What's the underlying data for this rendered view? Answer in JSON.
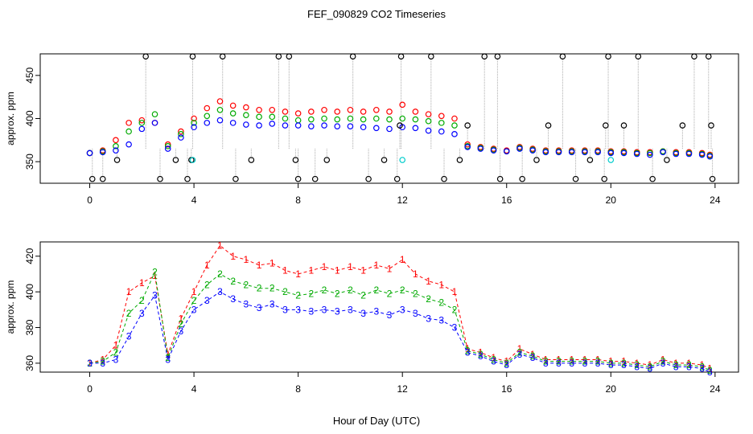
{
  "chart_data": {
    "title": "FEF_090829  CO2 Timeseries",
    "xlabel": "Hour of Day (UTC)",
    "xlim": [
      -1.9,
      24.9
    ],
    "xticks": [
      0,
      4,
      8,
      12,
      16,
      20,
      24
    ],
    "panels": [
      {
        "type": "scatter",
        "ylabel": "approx. ppm",
        "ylim": [
          325,
          475
        ],
        "yticks": [
          350,
          400,
          450
        ],
        "series": [
          {
            "name": "1",
            "color": "#ff0000",
            "x": [
              0,
              0.5,
              1,
              1.5,
              2,
              2.5,
              3,
              3.5,
              4,
              4.5,
              5,
              5.5,
              6,
              6.5,
              7,
              7.5,
              8,
              8.5,
              9,
              9.5,
              10,
              10.5,
              11,
              11.5,
              12,
              12.5,
              13,
              13.5,
              14,
              14.5,
              15,
              15.5,
              16,
              16.5,
              17,
              17.5,
              18,
              18.5,
              19,
              19.5,
              20,
              20.5,
              21,
              21.5,
              22,
              22.5,
              23,
              23.5,
              23.8
            ],
            "y": [
              360,
              363,
              375,
              395,
              398,
              395,
              370,
              385,
              400,
              412,
              420,
              415,
              413,
              410,
              410,
              408,
              406,
              408,
              410,
              408,
              410,
              408,
              410,
              408,
              416,
              408,
              405,
              403,
              400,
              370,
              367,
              365,
              363,
              367,
              365,
              363,
              363,
              363,
              363,
              363,
              362,
              362,
              361,
              361,
              362,
              361,
              361,
              360,
              358
            ]
          },
          {
            "name": "2",
            "color": "#00aa00",
            "x": [
              0,
              0.5,
              1,
              1.5,
              2,
              2.5,
              3,
              3.5,
              4,
              4.5,
              5,
              5.5,
              6,
              6.5,
              7,
              7.5,
              8,
              8.5,
              9,
              9.5,
              10,
              10.5,
              11,
              11.5,
              12,
              12.5,
              13,
              13.5,
              14,
              14.5,
              15,
              15.5,
              16,
              16.5,
              17,
              17.5,
              18,
              18.5,
              19,
              19.5,
              20,
              20.5,
              21,
              21.5,
              22,
              22.5,
              23,
              23.5,
              23.8
            ],
            "y": [
              360,
              362,
              368,
              385,
              395,
              405,
              368,
              382,
              395,
              403,
              410,
              406,
              404,
              402,
              402,
              400,
              398,
              399,
              400,
              399,
              400,
              399,
              400,
              399,
              400,
              399,
              397,
              395,
              392,
              368,
              366,
              364,
              362,
              366,
              364,
              362,
              362,
              362,
              362,
              362,
              361,
              361,
              360,
              360,
              362,
              360,
              360,
              359,
              357
            ]
          },
          {
            "name": "3",
            "color": "#0000ff",
            "x": [
              0,
              0.5,
              1,
              1.5,
              2,
              2.5,
              3,
              3.5,
              4,
              4.5,
              5,
              5.5,
              6,
              6.5,
              7,
              7.5,
              8,
              8.5,
              9,
              9.5,
              10,
              10.5,
              11,
              11.5,
              12,
              12.5,
              13,
              13.5,
              14,
              14.5,
              15,
              15.5,
              16,
              16.5,
              17,
              17.5,
              18,
              18.5,
              19,
              19.5,
              20,
              20.5,
              21,
              21.5,
              22,
              22.5,
              23,
              23.5,
              23.8
            ],
            "y": [
              360,
              361,
              363,
              370,
              388,
              395,
              365,
              378,
              390,
              395,
              398,
              395,
              393,
              392,
              394,
              392,
              392,
              391,
              392,
              391,
              391,
              390,
              389,
              388,
              390,
              389,
              386,
              385,
              382,
              367,
              365,
              363,
              362,
              365,
              363,
              361,
              361,
              361,
              361,
              361,
              360,
              360,
              359,
              358,
              361,
              359,
              359,
              358,
              356
            ]
          }
        ],
        "excursions_black": {
          "x": [
            0.1,
            0.5,
            1.05,
            2.15,
            2.7,
            3.3,
            3.75,
            3.9,
            3.95,
            5.1,
            5.6,
            6.2,
            7.25,
            7.65,
            7.9,
            8.0,
            8.65,
            9.1,
            10.1,
            10.7,
            11.3,
            11.8,
            11.9,
            11.95,
            13.1,
            13.6,
            14.2,
            14.5,
            15.15,
            15.65,
            15.75,
            16.6,
            17.15,
            17.6,
            18.15,
            18.65,
            19.2,
            19.75,
            19.8,
            19.9,
            20.5,
            21.05,
            21.6,
            22.15,
            22.75,
            23.2,
            23.75,
            23.85,
            23.9
          ],
          "y": [
            330,
            330,
            352,
            472,
            330,
            352,
            330,
            352,
            472,
            472,
            330,
            352,
            472,
            472,
            352,
            330,
            330,
            352,
            472,
            330,
            352,
            330,
            392,
            472,
            472,
            330,
            352,
            392,
            472,
            472,
            330,
            330,
            352,
            392,
            472,
            330,
            352,
            330,
            392,
            472,
            392,
            472,
            330,
            352,
            392,
            472,
            472,
            392,
            330
          ]
        },
        "excursions_cyan": {
          "x": [
            3.95,
            12.0,
            20.0
          ],
          "y": [
            352,
            352,
            352
          ]
        }
      },
      {
        "type": "line",
        "ylabel": "approx. ppm",
        "ylim": [
          355,
          428
        ],
        "yticks": [
          360,
          380,
          400,
          420
        ],
        "series": [
          {
            "name": "1",
            "color": "#ff0000",
            "x": [
              0,
              0.5,
              1,
              1.5,
              2,
              2.5,
              3,
              3.5,
              4,
              4.5,
              5,
              5.5,
              6,
              6.5,
              7,
              7.5,
              8,
              8.5,
              9,
              9.5,
              10,
              10.5,
              11,
              11.5,
              12,
              12.5,
              13,
              13.5,
              14,
              14.5,
              15,
              15.5,
              16,
              16.5,
              17,
              17.5,
              18,
              18.5,
              19,
              19.5,
              20,
              20.5,
              21,
              21.5,
              22,
              22.5,
              23,
              23.5,
              23.8
            ],
            "y": [
              360,
              362,
              370,
              400,
              405,
              409,
              365,
              385,
              400,
              415,
              426,
              420,
              418,
              415,
              416,
              412,
              410,
              412,
              414,
              412,
              414,
              412,
              415,
              413,
              418,
              410,
              406,
              404,
              400,
              368,
              366,
              363,
              361,
              368,
              365,
              362,
              362,
              362,
              362,
              362,
              361,
              361,
              360,
              359,
              362,
              360,
              360,
              359,
              357
            ]
          },
          {
            "name": "2",
            "color": "#00aa00",
            "x": [
              0,
              0.5,
              1,
              1.5,
              2,
              2.5,
              3,
              3.5,
              4,
              4.5,
              5,
              5.5,
              6,
              6.5,
              7,
              7.5,
              8,
              8.5,
              9,
              9.5,
              10,
              10.5,
              11,
              11.5,
              12,
              12.5,
              13,
              13.5,
              14,
              14.5,
              15,
              15.5,
              16,
              16.5,
              17,
              17.5,
              18,
              18.5,
              19,
              19.5,
              20,
              20.5,
              21,
              21.5,
              22,
              22.5,
              23,
              23.5,
              23.8
            ],
            "y": [
              360,
              361,
              366,
              388,
              395,
              411,
              363,
              382,
              395,
              404,
              410,
              406,
              404,
              402,
              402,
              400,
              398,
              399,
              401,
              399,
              401,
              398,
              401,
              399,
              401,
              399,
              396,
              394,
              390,
              367,
              365,
              362,
              360,
              366,
              364,
              361,
              361,
              361,
              361,
              361,
              360,
              360,
              359,
              358,
              361,
              359,
              359,
              358,
              356
            ]
          },
          {
            "name": "3",
            "color": "#0000ff",
            "x": [
              0,
              0.5,
              1,
              1.5,
              2,
              2.5,
              3,
              3.5,
              4,
              4.5,
              5,
              5.5,
              6,
              6.5,
              7,
              7.5,
              8,
              8.5,
              9,
              9.5,
              10,
              10.5,
              11,
              11.5,
              12,
              12.5,
              13,
              13.5,
              14,
              14.5,
              15,
              15.5,
              16,
              16.5,
              17,
              17.5,
              18,
              18.5,
              19,
              19.5,
              20,
              20.5,
              21,
              21.5,
              22,
              22.5,
              23,
              23.5,
              23.8
            ],
            "y": [
              360,
              360,
              362,
              375,
              388,
              398,
              362,
              378,
              390,
              395,
              400,
              396,
              393,
              391,
              393,
              390,
              390,
              389,
              390,
              389,
              390,
              388,
              389,
              387,
              390,
              388,
              385,
              384,
              380,
              366,
              364,
              361,
              359,
              365,
              363,
              360,
              360,
              360,
              360,
              360,
              359,
              359,
              358,
              357,
              360,
              358,
              358,
              357,
              355
            ]
          }
        ]
      }
    ]
  }
}
